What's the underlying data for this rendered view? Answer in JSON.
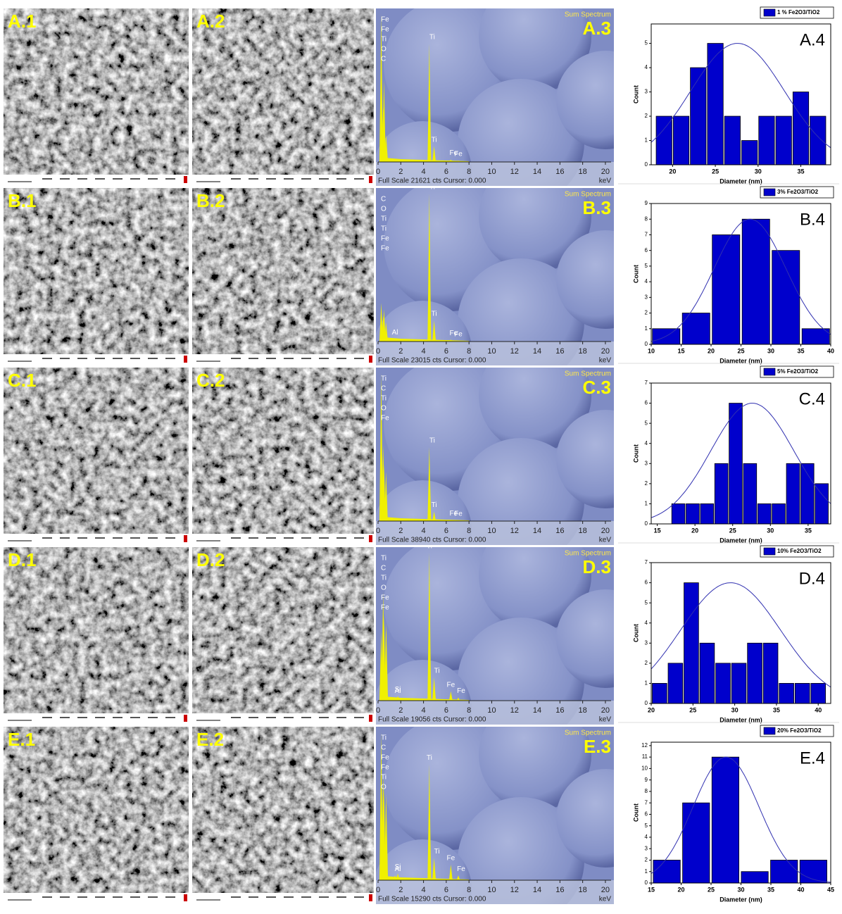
{
  "sem_labels": [
    [
      "A.1",
      "A.2"
    ],
    [
      "B.1",
      "B.2"
    ],
    [
      "C.1",
      "C.2"
    ],
    [
      "D.1",
      "D.2"
    ],
    [
      "E.1",
      "E.2"
    ]
  ],
  "chart_data": [
    {
      "type": "spectrum",
      "title": "Sum Spectrum",
      "panel_label": "A.3",
      "footer": "Full Scale 21621 cts Cursor: 0.000",
      "xlabel": "keV",
      "xlim": [
        0,
        20.5
      ],
      "ylim": [
        0,
        21621
      ],
      "xticks": [
        0,
        2,
        4,
        6,
        8,
        10,
        12,
        14,
        16,
        18,
        20
      ],
      "peaks": [
        {
          "label": "Fe",
          "x": 0.7,
          "value": 4000
        },
        {
          "label": "Fe",
          "x": 0.72,
          "value": 3500
        },
        {
          "label": "Ti",
          "x": 0.45,
          "value": 8000
        },
        {
          "label": "O",
          "x": 0.52,
          "value": 12000
        },
        {
          "label": "C",
          "x": 0.28,
          "value": 21621
        },
        {
          "label": "Ti",
          "x": 4.51,
          "value": 17300
        },
        {
          "label": "Ti",
          "x": 4.93,
          "value": 2300
        },
        {
          "label": "Fe",
          "x": 6.4,
          "value": 350
        },
        {
          "label": "Fe",
          "x": 7.06,
          "value": 200
        }
      ]
    },
    {
      "type": "bar",
      "panel_label": "A.4",
      "xlabel": "Diameter (nm)",
      "ylabel": "Count",
      "x": [
        19,
        21,
        23,
        25,
        27,
        29,
        31,
        33,
        35,
        37
      ],
      "series": [
        {
          "name": "1 % Fe2O3/TiO2",
          "color": "#0000cc",
          "values": [
            2,
            2,
            4,
            5,
            2,
            1,
            2,
            2,
            3,
            2
          ]
        }
      ],
      "xlim": [
        17.5,
        38.5
      ],
      "ylim": [
        0,
        5.8
      ],
      "xticks": [
        20,
        25,
        30,
        35
      ],
      "yticks": [
        0,
        1,
        2,
        3,
        4,
        5
      ],
      "fit": {
        "center": 27.6,
        "height": 5,
        "sd": 5.5
      }
    },
    {
      "type": "spectrum",
      "title": "Sum Spectrum",
      "panel_label": "B.3",
      "footer": "Full Scale 23015 cts Cursor: 0.000",
      "xlabel": "keV",
      "xlim": [
        0,
        20.5
      ],
      "ylim": [
        0,
        23015
      ],
      "xticks": [
        0,
        2,
        4,
        6,
        8,
        10,
        12,
        14,
        16,
        18,
        20
      ],
      "peaks": [
        {
          "label": "C",
          "x": 0.28,
          "value": 6000
        },
        {
          "label": "O",
          "x": 0.52,
          "value": 5000
        },
        {
          "label": "Ti",
          "x": 0.45,
          "value": 4000
        },
        {
          "label": "Ti",
          "x": 0.46,
          "value": 3500
        },
        {
          "label": "Fe",
          "x": 0.7,
          "value": 3000
        },
        {
          "label": "Fe",
          "x": 0.72,
          "value": 2500
        },
        {
          "label": "Al",
          "x": 1.49,
          "value": 400
        },
        {
          "label": "Ti",
          "x": 4.51,
          "value": 23015
        },
        {
          "label": "Ti",
          "x": 4.93,
          "value": 3300
        },
        {
          "label": "Fe",
          "x": 6.4,
          "value": 300
        },
        {
          "label": "Fe",
          "x": 7.06,
          "value": 150
        }
      ]
    },
    {
      "type": "bar",
      "panel_label": "B.4",
      "xlabel": "Diameter (nm)",
      "ylabel": "Count",
      "x": [
        12.5,
        17.5,
        22.5,
        27.5,
        32.5,
        37.5
      ],
      "series": [
        {
          "name": "3% Fe2O3/TiO2",
          "color": "#0000cc",
          "values": [
            1,
            2,
            7,
            8,
            6,
            1
          ]
        }
      ],
      "xlim": [
        10,
        40
      ],
      "ylim": [
        0,
        9
      ],
      "xticks": [
        10,
        15,
        20,
        25,
        30,
        35,
        40
      ],
      "yticks": [
        0,
        1,
        2,
        3,
        4,
        5,
        6,
        7,
        8,
        9
      ],
      "fit": {
        "center": 26.5,
        "height": 8,
        "sd": 6
      }
    },
    {
      "type": "spectrum",
      "title": "Sum Spectrum",
      "panel_label": "C.3",
      "footer": "Full Scale 38940 cts Cursor: 0.000",
      "xlabel": "keV",
      "xlim": [
        0,
        20.5
      ],
      "ylim": [
        0,
        38940
      ],
      "xticks": [
        0,
        2,
        4,
        6,
        8,
        10,
        12,
        14,
        16,
        18,
        20
      ],
      "peaks": [
        {
          "label": "Ti",
          "x": 0.45,
          "value": 20000
        },
        {
          "label": "C",
          "x": 0.28,
          "value": 38940
        },
        {
          "label": "Ti",
          "x": 0.46,
          "value": 18000
        },
        {
          "label": "O",
          "x": 0.52,
          "value": 15000
        },
        {
          "label": "Fe",
          "x": 0.7,
          "value": 13000
        },
        {
          "label": "Ti",
          "x": 4.51,
          "value": 19500
        },
        {
          "label": "Ti",
          "x": 4.93,
          "value": 2500
        },
        {
          "label": "Fe",
          "x": 6.4,
          "value": 300
        },
        {
          "label": "Fe",
          "x": 7.06,
          "value": 200
        }
      ]
    },
    {
      "type": "bar",
      "panel_label": "C.4",
      "xlabel": "Diameter (nm)",
      "ylabel": "Count",
      "x": [
        17.8,
        19.7,
        21.6,
        23.5,
        25.4,
        27.3,
        29.2,
        31.1,
        33,
        34.9,
        36.8
      ],
      "series": [
        {
          "name": "5% Fe2O3/TiO2",
          "color": "#0000cc",
          "values": [
            1,
            1,
            1,
            3,
            6,
            3,
            1,
            1,
            3,
            3,
            2
          ]
        }
      ],
      "xlim": [
        14.2,
        38
      ],
      "ylim": [
        0,
        7
      ],
      "xticks": [
        15,
        20,
        25,
        30,
        35
      ],
      "yticks": [
        0,
        1,
        2,
        3,
        4,
        5,
        6,
        7
      ],
      "fit": {
        "center": 27.6,
        "height": 6,
        "sd": 5.5
      }
    },
    {
      "type": "spectrum",
      "title": "Sum Spectrum",
      "panel_label": "D.3",
      "footer": "Full Scale 19056 cts Cursor: 0.000",
      "xlabel": "keV",
      "xlim": [
        0,
        20.5
      ],
      "ylim": [
        0,
        19056
      ],
      "xticks": [
        0,
        2,
        4,
        6,
        8,
        10,
        12,
        14,
        16,
        18,
        20
      ],
      "peaks": [
        {
          "label": "Ti",
          "x": 0.45,
          "value": 14000
        },
        {
          "label": "C",
          "x": 0.28,
          "value": 9000
        },
        {
          "label": "Ti",
          "x": 0.46,
          "value": 12000
        },
        {
          "label": "O",
          "x": 0.52,
          "value": 11000
        },
        {
          "label": "Fe",
          "x": 0.7,
          "value": 10000
        },
        {
          "label": "Fe",
          "x": 0.72,
          "value": 9000
        },
        {
          "label": "Si",
          "x": 1.74,
          "value": 600
        },
        {
          "label": "Al",
          "x": 1.49,
          "value": 400
        },
        {
          "label": "Ti",
          "x": 4.51,
          "value": 19056
        },
        {
          "label": "Ti",
          "x": 4.93,
          "value": 3000
        },
        {
          "label": "Fe",
          "x": 6.4,
          "value": 1200
        },
        {
          "label": "Fe",
          "x": 7.06,
          "value": 400
        }
      ]
    },
    {
      "type": "bar",
      "panel_label": "D.4",
      "xlabel": "Diameter (nm)",
      "ylabel": "Count",
      "x": [
        21,
        22.9,
        24.8,
        26.7,
        28.6,
        30.5,
        32.4,
        34.3,
        36.2,
        38.1,
        40
      ],
      "series": [
        {
          "name": "10% Fe2O3/TiO2",
          "color": "#0000cc",
          "values": [
            1,
            2,
            6,
            3,
            2,
            2,
            3,
            3,
            1,
            1,
            1
          ]
        }
      ],
      "xlim": [
        20,
        41.5
      ],
      "ylim": [
        0,
        7
      ],
      "xticks": [
        20,
        25,
        30,
        35,
        40
      ],
      "yticks": [
        0,
        1,
        2,
        3,
        4,
        5,
        6,
        7
      ],
      "fit": {
        "center": 29.5,
        "height": 6,
        "sd": 6
      }
    },
    {
      "type": "spectrum",
      "title": "Sum Spectrum",
      "panel_label": "E.3",
      "footer": "Full Scale 15290 cts Cursor: 0.000",
      "xlabel": "keV",
      "xlim": [
        0,
        20.5
      ],
      "ylim": [
        0,
        15290
      ],
      "xticks": [
        0,
        2,
        4,
        6,
        8,
        10,
        12,
        14,
        16,
        18,
        20
      ],
      "peaks": [
        {
          "label": "Ti",
          "x": 0.45,
          "value": 11000
        },
        {
          "label": "C",
          "x": 0.28,
          "value": 15290
        },
        {
          "label": "Fe",
          "x": 0.7,
          "value": 9000
        },
        {
          "label": "Fe",
          "x": 0.72,
          "value": 8000
        },
        {
          "label": "Ti",
          "x": 0.46,
          "value": 10000
        },
        {
          "label": "O",
          "x": 0.52,
          "value": 9500
        },
        {
          "label": "Si",
          "x": 1.74,
          "value": 700
        },
        {
          "label": "Al",
          "x": 1.49,
          "value": 500
        },
        {
          "label": "Ti",
          "x": 4.51,
          "value": 12000
        },
        {
          "label": "Ti",
          "x": 4.93,
          "value": 2300
        },
        {
          "label": "Fe",
          "x": 6.4,
          "value": 1600
        },
        {
          "label": "Fe",
          "x": 7.06,
          "value": 500
        }
      ]
    },
    {
      "type": "bar",
      "panel_label": "E.4",
      "xlabel": "Diameter (nm)",
      "ylabel": "Count",
      "x": [
        17.6,
        22.5,
        27.4,
        32.3,
        37.2,
        42.1
      ],
      "series": [
        {
          "name": "20% Fe2O3/TiO2",
          "color": "#0000cc",
          "values": [
            2,
            7,
            11,
            1,
            2,
            2
          ]
        }
      ],
      "xlim": [
        15,
        45
      ],
      "ylim": [
        0,
        12.3
      ],
      "xticks": [
        15,
        20,
        25,
        30,
        35,
        40,
        45
      ],
      "yticks": [
        0,
        1,
        2,
        3,
        4,
        5,
        6,
        7,
        8,
        9,
        10,
        11,
        12
      ],
      "fit": {
        "center": 27.5,
        "height": 11,
        "sd": 5.5
      }
    }
  ]
}
